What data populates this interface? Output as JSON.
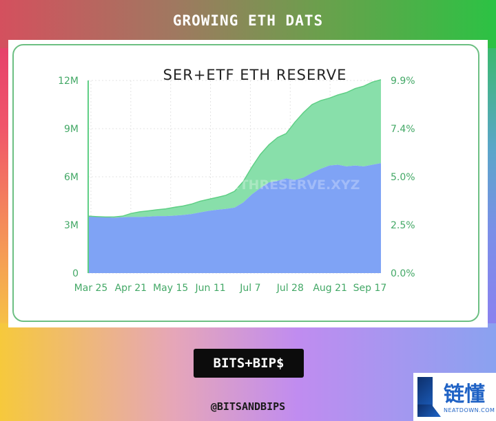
{
  "header": {
    "title": "GROWING ETH DATS"
  },
  "chart_data": {
    "type": "area",
    "title": "SER+ETF ETH RESERVE",
    "watermark": "STRATEGICETHRESERVE.XYZ",
    "x_ticks": [
      "Mar 25",
      "Apr 21",
      "May 15",
      "Jun 11",
      "Jul 7",
      "Jul 28",
      "Aug 21",
      "Sep 17"
    ],
    "ylim": [
      0,
      12000000
    ],
    "y_ticks": [
      "0",
      "3M",
      "6M",
      "9M",
      "12M"
    ],
    "y2_ticks": [
      "0.0%",
      "2.5%",
      "5.0%",
      "7.4%",
      "9.9%"
    ],
    "colors": {
      "base": "#7fa3f5",
      "upper": "#88dfaa",
      "line": "#5fcf85"
    },
    "series": [
      {
        "values_total": [
          3.55,
          3.52,
          3.5,
          3.5,
          3.55,
          3.72,
          3.82,
          3.88,
          3.95,
          4.0,
          4.1,
          4.18,
          4.3,
          4.48,
          4.6,
          4.72,
          4.85,
          5.1,
          5.7,
          6.6,
          7.4,
          8.0,
          8.45,
          8.7,
          9.4,
          10.0,
          10.5,
          10.75,
          10.9,
          11.1,
          11.25,
          11.5,
          11.65,
          11.9,
          12.05
        ],
        "values_base": [
          3.55,
          3.52,
          3.5,
          3.45,
          3.48,
          3.5,
          3.5,
          3.52,
          3.55,
          3.55,
          3.58,
          3.62,
          3.68,
          3.78,
          3.88,
          3.95,
          4.0,
          4.08,
          4.4,
          4.9,
          5.3,
          5.65,
          5.75,
          5.9,
          5.8,
          5.95,
          6.25,
          6.5,
          6.7,
          6.75,
          6.65,
          6.7,
          6.65,
          6.75,
          6.85
        ]
      }
    ]
  },
  "footer": {
    "logo_text": "BITS+BIP$",
    "handle": "@BITSANDBIPS"
  },
  "watermark_brand": {
    "cn": "链懂",
    "en": "NEATDOWN.COM"
  }
}
